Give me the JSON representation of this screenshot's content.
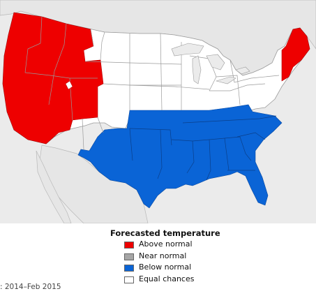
{
  "colors": {
    "above": "#ee0000",
    "below": "#0a64d6",
    "near": "#a6a6a6",
    "equal": "#ffffff",
    "water": "#ebebeb",
    "neighbor": "#e6e6e6",
    "border": "#9a9a9a"
  },
  "legend": {
    "title": "Forecasted temperature",
    "items": [
      {
        "label": "Above normal",
        "color": "#ee0000"
      },
      {
        "label": "Near normal",
        "color": "#a6a6a6"
      },
      {
        "label": "Below normal",
        "color": "#0a64d6"
      },
      {
        "label": "Equal chances",
        "color": "#ffffff"
      }
    ]
  },
  "caption": ": 2014–Feb 2015"
}
